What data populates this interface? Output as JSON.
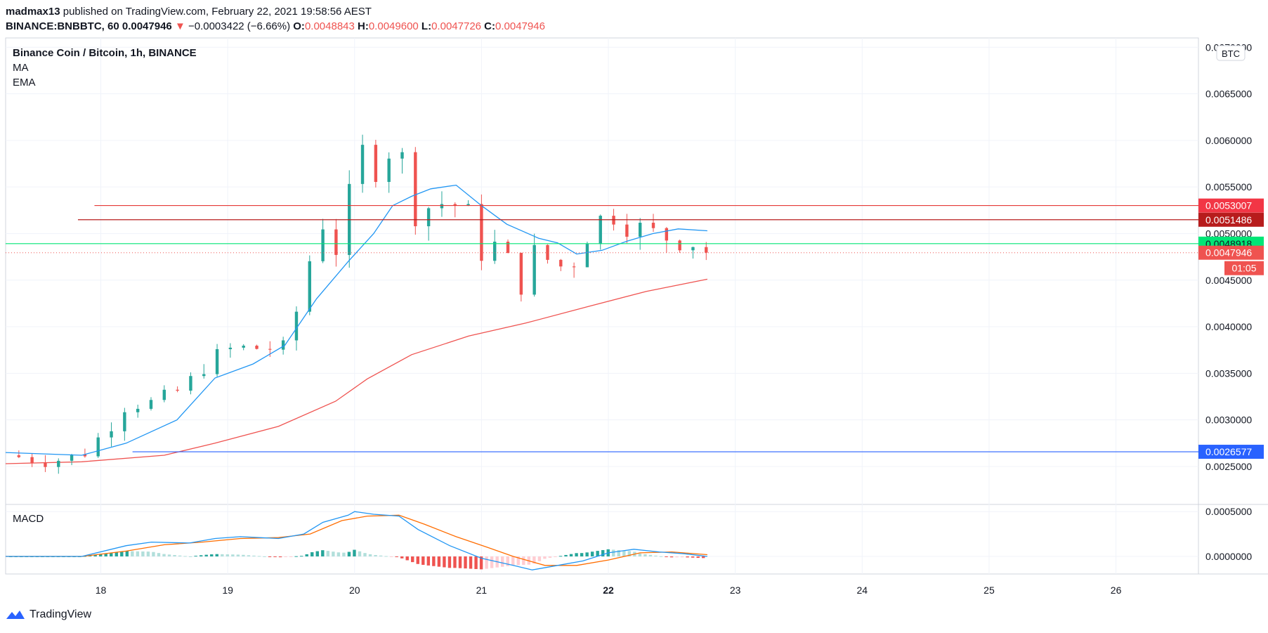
{
  "header": {
    "author": "madmax13",
    "published_text": "published on TradingView.com, February 22, 2021 19:58:56 AEST",
    "symbol": "BINANCE:BNBBTC, 60",
    "last": "0.0047946",
    "change_arrow": "▼",
    "change": "−0.0003422 (−6.66%)",
    "o_label": "O:",
    "o_value": "0.0048843",
    "h_label": "H:",
    "h_value": "0.0049600",
    "l_label": "L:",
    "l_value": "0.0047726",
    "c_label": "C:",
    "c_value": "0.0047946"
  },
  "legend": {
    "title": "Binance Coin / Bitcoin, 1h, BINANCE",
    "ma": "MA",
    "ema": "EMA",
    "macd": "MACD"
  },
  "currency_badge": "BTC",
  "footer": {
    "brand": "TradingView"
  },
  "colors": {
    "up": "#26a69a",
    "down": "#ef5350",
    "ma": "#2196f3",
    "ema": "#ef5350",
    "macd": "#2196f3",
    "signal": "#ff6d00",
    "resistance": "#e53935",
    "support_green": "#00e676",
    "support_blue": "#2962ff"
  },
  "chart_data": {
    "type": "candlestick",
    "title": "Binance Coin / Bitcoin, 1h, BINANCE",
    "x_ticks": [
      "18",
      "19",
      "20",
      "21",
      "22",
      "23",
      "24",
      "25",
      "26"
    ],
    "bold_x_tick": "22",
    "y_ticks": [
      "0.0025000",
      "0.0030000",
      "0.0035000",
      "0.0040000",
      "0.0045000",
      "0.0050000",
      "0.0055000",
      "0.0060000",
      "0.0065000",
      "0.0070000"
    ],
    "ylim": [
      0.0021,
      0.0071
    ],
    "xlim_days": [
      17.25,
      26.65
    ],
    "price_labels": [
      {
        "value": "0.0053007",
        "bg": "#f23645"
      },
      {
        "value": "0.0051486",
        "bg": "#b71c1c"
      },
      {
        "value": "0.0048918",
        "bg": "#00e676"
      },
      {
        "value": "0.0047946",
        "bg": "#ef5350"
      },
      {
        "value": "0.0026577",
        "bg": "#2962ff"
      }
    ],
    "countdown": "01:05",
    "levels": [
      {
        "price": 0.0053007,
        "from_day": 17.95,
        "color": "#e53935"
      },
      {
        "price": 0.0051486,
        "from_day": 17.82,
        "color": "#b71c1c"
      },
      {
        "price": 0.0048918,
        "from_day": 17.25,
        "color": "#00e676"
      },
      {
        "price": 0.0026577,
        "from_day": 18.25,
        "color": "#2962ff"
      }
    ],
    "last_price": 0.0047946,
    "key_points": [
      [
        17.25,
        0.00262
      ],
      [
        17.6,
        0.00256
      ],
      [
        17.85,
        0.00262
      ],
      [
        18.05,
        0.0029
      ],
      [
        18.2,
        0.00318
      ],
      [
        18.4,
        0.00318
      ],
      [
        18.55,
        0.00325
      ],
      [
        18.7,
        0.0034
      ],
      [
        18.8,
        0.00357
      ],
      [
        19.0,
        0.00375
      ],
      [
        19.3,
        0.00378
      ],
      [
        19.45,
        0.00375
      ],
      [
        19.55,
        0.0042
      ],
      [
        19.68,
        0.0049
      ],
      [
        19.72,
        0.00525
      ],
      [
        19.8,
        0.0049
      ],
      [
        19.88,
        0.0048
      ],
      [
        19.93,
        0.00512
      ],
      [
        20.0,
        0.0058
      ],
      [
        20.03,
        0.0062
      ],
      [
        20.1,
        0.0055
      ],
      [
        20.2,
        0.0058
      ],
      [
        20.35,
        0.006
      ],
      [
        20.45,
        0.0052
      ],
      [
        20.6,
        0.0053
      ],
      [
        20.75,
        0.00535
      ],
      [
        20.9,
        0.0052
      ],
      [
        21.0,
        0.0048
      ],
      [
        21.15,
        0.0049
      ],
      [
        21.3,
        0.0044
      ],
      [
        21.4,
        0.0048
      ],
      [
        21.55,
        0.0047
      ],
      [
        21.7,
        0.0046
      ],
      [
        21.78,
        0.0049
      ],
      [
        21.9,
        0.0051
      ],
      [
        22.0,
        0.00525
      ],
      [
        22.15,
        0.0051
      ],
      [
        22.35,
        0.005
      ],
      [
        22.5,
        0.00495
      ],
      [
        22.7,
        0.0049
      ],
      [
        22.78,
        0.0047946
      ]
    ],
    "ma_points": [
      [
        17.25,
        0.00265
      ],
      [
        17.85,
        0.00262
      ],
      [
        18.2,
        0.00275
      ],
      [
        18.6,
        0.003
      ],
      [
        18.9,
        0.00345
      ],
      [
        19.2,
        0.0036
      ],
      [
        19.45,
        0.0038
      ],
      [
        19.7,
        0.0043
      ],
      [
        19.95,
        0.0047
      ],
      [
        20.15,
        0.005
      ],
      [
        20.3,
        0.0053
      ],
      [
        20.45,
        0.0054
      ],
      [
        20.6,
        0.00548
      ],
      [
        20.8,
        0.00552
      ],
      [
        21.0,
        0.0053
      ],
      [
        21.2,
        0.0051
      ],
      [
        21.45,
        0.00495
      ],
      [
        21.6,
        0.0049
      ],
      [
        21.75,
        0.00478
      ],
      [
        21.95,
        0.00482
      ],
      [
        22.15,
        0.00492
      ],
      [
        22.35,
        0.005
      ],
      [
        22.55,
        0.00505
      ],
      [
        22.78,
        0.00503
      ]
    ],
    "ema_points": [
      [
        17.25,
        0.00253
      ],
      [
        17.85,
        0.00255
      ],
      [
        18.5,
        0.00262
      ],
      [
        18.9,
        0.00275
      ],
      [
        19.4,
        0.00293
      ],
      [
        19.85,
        0.0032
      ],
      [
        20.1,
        0.00344
      ],
      [
        20.45,
        0.0037
      ],
      [
        20.9,
        0.0039
      ],
      [
        21.35,
        0.00404
      ],
      [
        21.85,
        0.00422
      ],
      [
        22.3,
        0.00438
      ],
      [
        22.78,
        0.00451
      ]
    ],
    "macd": {
      "ylim": [
        -0.00018,
        0.00058
      ],
      "y_ticks": [
        "0.0000000",
        "0.0005000"
      ],
      "macd_points": [
        [
          17.25,
          0.0
        ],
        [
          17.85,
          0.0
        ],
        [
          18.2,
          0.00012
        ],
        [
          18.4,
          0.00016
        ],
        [
          18.7,
          0.00015
        ],
        [
          18.9,
          0.0002
        ],
        [
          19.1,
          0.00022
        ],
        [
          19.4,
          0.0002
        ],
        [
          19.6,
          0.00025
        ],
        [
          19.75,
          0.00038
        ],
        [
          19.95,
          0.00046
        ],
        [
          20.0,
          0.0005
        ],
        [
          20.15,
          0.00047
        ],
        [
          20.35,
          0.00045
        ],
        [
          20.5,
          0.0003
        ],
        [
          20.75,
          0.00012
        ],
        [
          21.0,
          -2e-05
        ],
        [
          21.25,
          -0.0001
        ],
        [
          21.4,
          -0.00015
        ],
        [
          21.6,
          -0.0001
        ],
        [
          21.8,
          -5e-05
        ],
        [
          22.0,
          4e-05
        ],
        [
          22.2,
          8e-05
        ],
        [
          22.4,
          5e-05
        ],
        [
          22.6,
          3e-05
        ],
        [
          22.78,
          0.0
        ]
      ],
      "signal_points": [
        [
          17.25,
          0.0
        ],
        [
          17.85,
          0.0
        ],
        [
          18.2,
          6e-05
        ],
        [
          18.5,
          0.00013
        ],
        [
          18.8,
          0.00016
        ],
        [
          19.1,
          0.0002
        ],
        [
          19.4,
          0.00021
        ],
        [
          19.65,
          0.00025
        ],
        [
          19.9,
          0.0004
        ],
        [
          20.1,
          0.00045
        ],
        [
          20.35,
          0.00046
        ],
        [
          20.55,
          0.00036
        ],
        [
          20.8,
          0.00022
        ],
        [
          21.05,
          0.0001
        ],
        [
          21.25,
          0.0
        ],
        [
          21.5,
          -0.0001
        ],
        [
          21.75,
          -0.0001
        ],
        [
          22.0,
          -4e-05
        ],
        [
          22.25,
          4e-05
        ],
        [
          22.5,
          5e-05
        ],
        [
          22.78,
          2e-05
        ]
      ]
    }
  }
}
